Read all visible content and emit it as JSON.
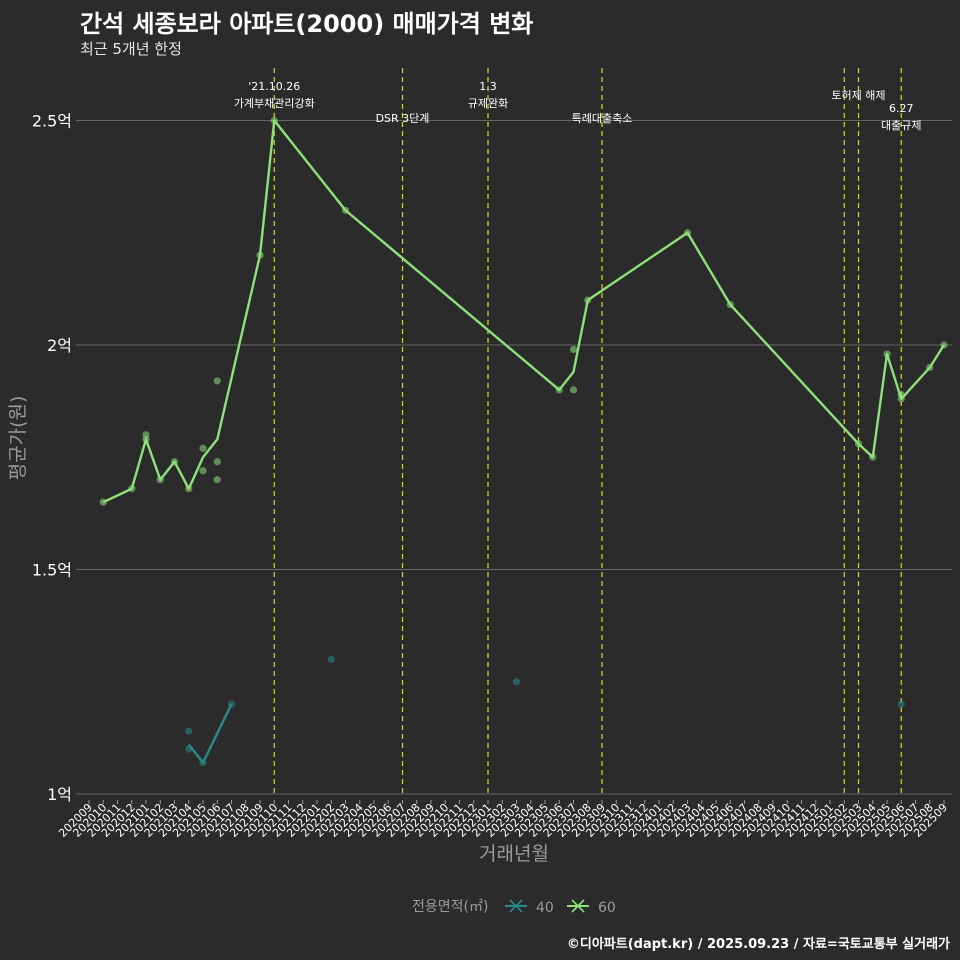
{
  "chart_data": {
    "type": "line",
    "title": "간석 세종보라 아파트(2000) 매매가격 변화",
    "subtitle": "최근 5개년 한정",
    "xlabel": "거래년월",
    "ylabel": "평균가(원)",
    "caption": "©디아파트(dapt.kr) / 2025.09.23 / 자료=국토교통부 실거래가",
    "ylim": [
      1.0,
      2.6
    ],
    "y_ticks": [
      1.0,
      1.5,
      2.0,
      2.5
    ],
    "y_tick_labels": [
      "1억",
      "1.5억",
      "2억",
      "2.5억"
    ],
    "categories": [
      "202009",
      "202010",
      "202011",
      "202012",
      "202101",
      "202102",
      "202103",
      "202104",
      "202105",
      "202106",
      "202107",
      "202108",
      "202109",
      "202110",
      "202111",
      "202112",
      "202201",
      "202202",
      "202203",
      "202204",
      "202205",
      "202206",
      "202207",
      "202208",
      "202209",
      "202210",
      "202211",
      "202212",
      "202301",
      "202302",
      "202303",
      "202304",
      "202305",
      "202306",
      "202307",
      "202308",
      "202309",
      "202310",
      "202311",
      "202312",
      "202401",
      "202402",
      "202403",
      "202404",
      "202405",
      "202406",
      "202407",
      "202408",
      "202409",
      "202410",
      "202411",
      "202412",
      "202501",
      "202502",
      "202503",
      "202504",
      "202505",
      "202506",
      "202507",
      "202508",
      "202509"
    ],
    "legend_title": "전용면적(㎡)",
    "series": [
      {
        "name": "40",
        "color": "#2a8a8a",
        "line": [
          [
            "202104",
            1.11
          ],
          [
            "202105",
            1.07
          ],
          [
            "202107",
            1.2
          ]
        ],
        "points": [
          [
            "202104",
            1.14
          ],
          [
            "202104",
            1.1
          ],
          [
            "202105",
            1.07
          ],
          [
            "202107",
            1.2
          ],
          [
            "202202",
            1.3
          ],
          [
            "202303",
            1.25
          ],
          [
            "202506",
            1.2
          ]
        ]
      },
      {
        "name": "60",
        "color": "#8ee07a",
        "line": [
          [
            "202010",
            1.65
          ],
          [
            "202012",
            1.68
          ],
          [
            "202101",
            1.79
          ],
          [
            "202102",
            1.7
          ],
          [
            "202103",
            1.74
          ],
          [
            "202104",
            1.68
          ],
          [
            "202105",
            1.75
          ],
          [
            "202106",
            1.79
          ],
          [
            "202109",
            2.2
          ],
          [
            "202110",
            2.5
          ],
          [
            "202203",
            2.3
          ],
          [
            "202306",
            1.9
          ],
          [
            "202307",
            1.94
          ],
          [
            "202308",
            2.1
          ],
          [
            "202403",
            2.25
          ],
          [
            "202406",
            2.09
          ],
          [
            "202503",
            1.78
          ],
          [
            "202504",
            1.75
          ],
          [
            "202505",
            1.98
          ],
          [
            "202506",
            1.88
          ],
          [
            "202508",
            1.95
          ],
          [
            "202509",
            2.0
          ]
        ],
        "points": [
          [
            "202010",
            1.65
          ],
          [
            "202012",
            1.68
          ],
          [
            "202101",
            1.8
          ],
          [
            "202101",
            1.79
          ],
          [
            "202102",
            1.7
          ],
          [
            "202103",
            1.74
          ],
          [
            "202104",
            1.68
          ],
          [
            "202105",
            1.77
          ],
          [
            "202105",
            1.72
          ],
          [
            "202106",
            1.92
          ],
          [
            "202106",
            1.74
          ],
          [
            "202106",
            1.7
          ],
          [
            "202109",
            2.2
          ],
          [
            "202110",
            2.5
          ],
          [
            "202203",
            2.3
          ],
          [
            "202306",
            1.9
          ],
          [
            "202307",
            1.99
          ],
          [
            "202307",
            1.9
          ],
          [
            "202308",
            2.1
          ],
          [
            "202403",
            2.25
          ],
          [
            "202406",
            2.09
          ],
          [
            "202503",
            1.78
          ],
          [
            "202504",
            1.75
          ],
          [
            "202505",
            1.98
          ],
          [
            "202506",
            1.88
          ],
          [
            "202506",
            1.89
          ],
          [
            "202508",
            1.95
          ],
          [
            "202509",
            2.0
          ]
        ]
      }
    ],
    "annotations": [
      {
        "x": "202110",
        "lines": [
          "'21.10.26",
          "가계부채관리강화"
        ],
        "level": 2
      },
      {
        "x": "202207",
        "lines": [
          "DSR 3단계"
        ],
        "level": 0
      },
      {
        "x": "202301",
        "lines": [
          "1.3",
          "규제완화"
        ],
        "level": 2
      },
      {
        "x": "202309",
        "lines": [
          "특례대출축소"
        ],
        "level": 0
      },
      {
        "x": "202502",
        "lines": [],
        "level": 0
      },
      {
        "x": "202503",
        "lines": [
          "토허제 해제"
        ],
        "level": 1
      },
      {
        "x": "202506",
        "lines": [
          "6.27",
          "대출규제"
        ],
        "level": -1
      }
    ]
  }
}
